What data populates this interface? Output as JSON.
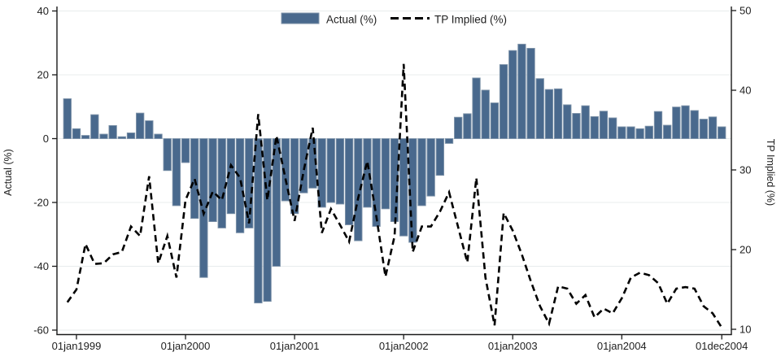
{
  "chart_data": {
    "type": "combo",
    "title": "",
    "categories": [
      "dec1998",
      "jan1999",
      "feb1999",
      "mar1999",
      "apr1999",
      "may1999",
      "jun1999",
      "jul1999",
      "aug1999",
      "sep1999",
      "oct1999",
      "nov1999",
      "dec1999",
      "jan2000",
      "feb2000",
      "mar2000",
      "apr2000",
      "may2000",
      "jun2000",
      "jul2000",
      "aug2000",
      "sep2000",
      "oct2000",
      "nov2000",
      "dec2000",
      "jan2001",
      "feb2001",
      "mar2001",
      "apr2001",
      "may2001",
      "jun2001",
      "jul2001",
      "aug2001",
      "sep2001",
      "oct2001",
      "nov2001",
      "dec2001",
      "jan2002",
      "feb2002",
      "mar2002",
      "apr2002",
      "may2002",
      "jun2002",
      "jul2002",
      "aug2002",
      "sep2002",
      "oct2002",
      "nov2002",
      "dec2002",
      "jan2003",
      "feb2003",
      "mar2003",
      "apr2003",
      "may2003",
      "jun2003",
      "jul2003",
      "aug2003",
      "sep2003",
      "oct2003",
      "nov2003",
      "dec2003",
      "jan2004",
      "feb2004",
      "mar2004",
      "apr2004",
      "may2004",
      "jun2004",
      "jul2004",
      "aug2004",
      "sep2004",
      "oct2004",
      "nov2004",
      "dec2004"
    ],
    "series": [
      {
        "name": "Actual (%)",
        "type": "bar",
        "axis": "left",
        "values": [
          12.5,
          3.1,
          1.0,
          7.5,
          1.4,
          4.1,
          0.6,
          1.8,
          8.0,
          5.6,
          1.4,
          -10.0,
          -21.0,
          -7.5,
          -25.0,
          -43.5,
          -26.0,
          -28.0,
          -23.5,
          -29.5,
          -28.0,
          -51.5,
          -51.0,
          -40.0,
          -19.5,
          -23.5,
          -17.0,
          -15.5,
          -21.5,
          -20.0,
          -20.5,
          -27.0,
          -32.0,
          -21.5,
          -27.5,
          -22.0,
          -26.0,
          -30.5,
          -32.5,
          -21.0,
          -18.0,
          -11.5,
          -1.5,
          6.7,
          7.8,
          19.0,
          15.2,
          11.2,
          23.2,
          27.6,
          29.6,
          28.3,
          18.8,
          15.4,
          15.6,
          10.6,
          7.9,
          10.3,
          6.9,
          8.6,
          6.5,
          3.7,
          3.7,
          3.1,
          3.9,
          8.5,
          4.2,
          9.9,
          10.3,
          8.8,
          6.1,
          6.8,
          3.7
        ]
      },
      {
        "name": "TP Implied (%)",
        "type": "line",
        "style": "dashed",
        "axis": "right",
        "values": [
          13.4,
          15.0,
          20.7,
          18.2,
          18.3,
          19.4,
          19.7,
          22.9,
          21.7,
          29.2,
          18.3,
          21.7,
          16.5,
          26.2,
          28.9,
          24.5,
          27.3,
          26.2,
          30.6,
          29.0,
          23.3,
          37.0,
          26.2,
          34.3,
          28.9,
          23.6,
          29.9,
          35.3,
          22.1,
          25.1,
          23.1,
          21.0,
          26.5,
          31.1,
          24.1,
          16.6,
          21.7,
          43.3,
          19.7,
          22.9,
          22.9,
          24.8,
          27.2,
          22.8,
          18.4,
          29.0,
          16.5,
          10.5,
          24.6,
          22.4,
          19.4,
          16.0,
          12.9,
          10.7,
          15.4,
          15.1,
          13.2,
          14.3,
          11.5,
          12.6,
          12.0,
          13.9,
          16.5,
          17.1,
          16.8,
          15.8,
          13.2,
          15.1,
          15.3,
          15.1,
          12.9,
          12.0,
          10.2
        ]
      }
    ],
    "x_axis": {
      "tick_labels": [
        "01jan1999",
        "01jan2000",
        "01jan2001",
        "01jan2002",
        "01jan2003",
        "01jan2004",
        "01dec2004"
      ],
      "tick_category_indices": [
        1,
        13,
        25,
        37,
        49,
        61,
        72
      ]
    },
    "y_left": {
      "label": "Actual (%)",
      "ticks": [
        40,
        20,
        0,
        -20,
        -40,
        -60
      ],
      "range": [
        -60,
        40
      ]
    },
    "y_right": {
      "label": "TP Implied (%)",
      "ticks": [
        50,
        40,
        30,
        20,
        10
      ],
      "range": [
        10,
        50
      ]
    },
    "grid": true,
    "legend_position": "top-center"
  },
  "legend": {
    "actual_label": "Actual (%)",
    "tp_label": "TP Implied (%)"
  },
  "colors": {
    "bar_fill": "#49698d",
    "bar_border": "#7e93a9",
    "line": "#000000",
    "grid": "#e8eced",
    "axis": "#1a1a1a",
    "text": "#1f1f1f",
    "background": "#ffffff"
  }
}
